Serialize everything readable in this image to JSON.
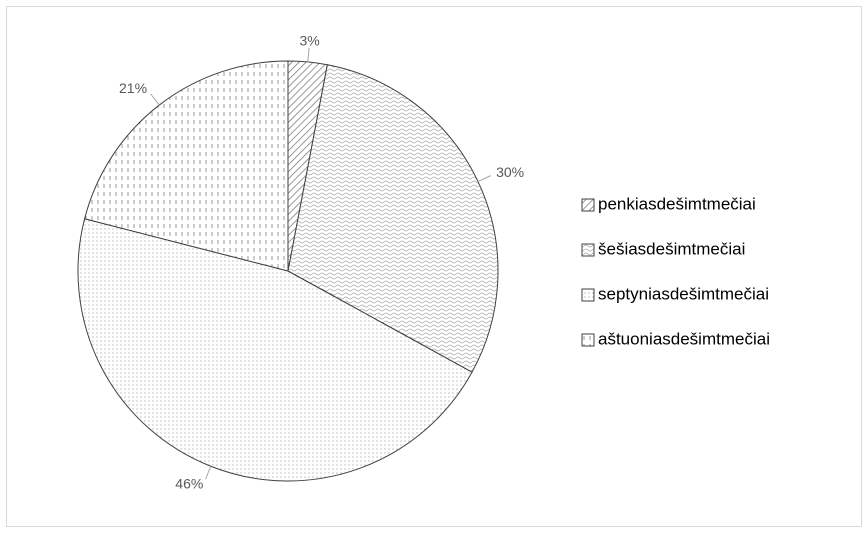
{
  "chart_data": {
    "type": "pie",
    "categories": [
      "penkiasdešimtmečiai",
      "šešiasdešimtmečiai",
      "septyniasdešimtmečiai",
      "aštuoniasdešimtmečiai"
    ],
    "values": [
      3,
      30,
      46,
      21
    ],
    "value_labels": [
      "3%",
      "30%",
      "46%",
      "21%"
    ]
  }
}
